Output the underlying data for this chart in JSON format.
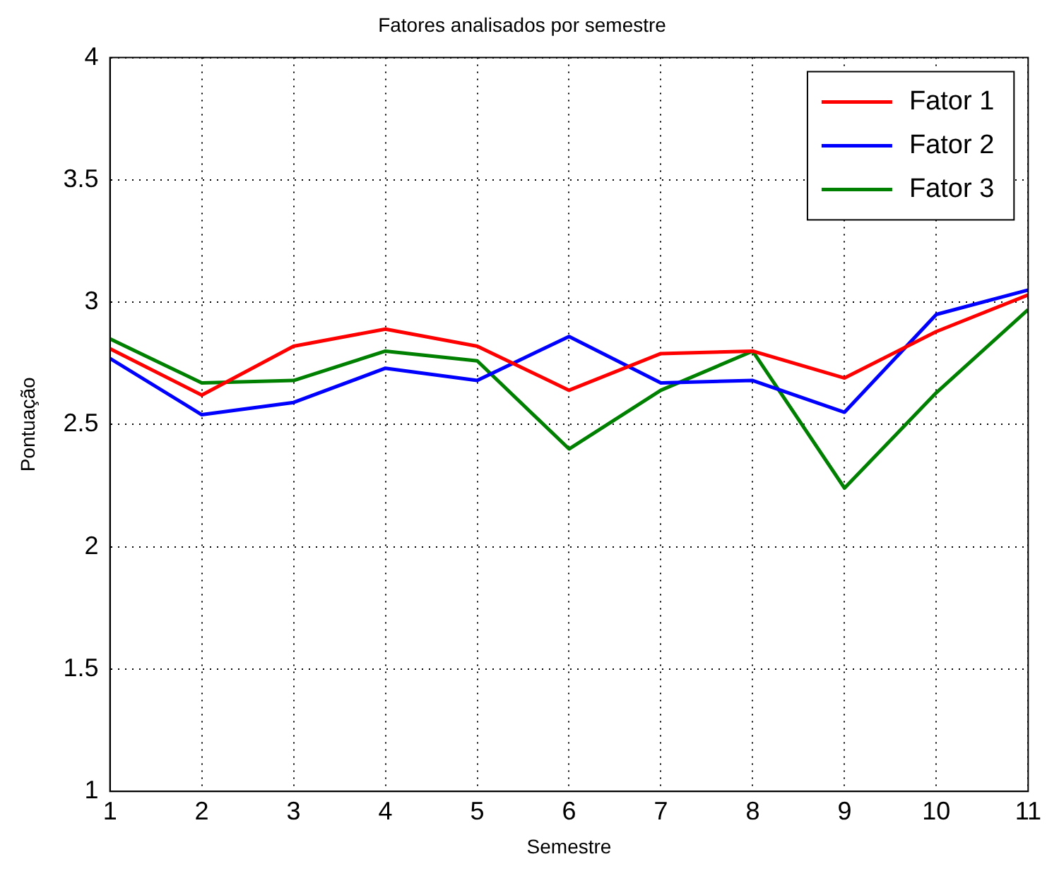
{
  "chart_data": {
    "type": "line",
    "title": "Fatores analisados por semestre",
    "xlabel": "Semestre",
    "ylabel": "Pontuação",
    "x": [
      1,
      2,
      3,
      4,
      5,
      6,
      7,
      8,
      9,
      10,
      11
    ],
    "series": [
      {
        "name": "Fator 1",
        "color": "#ff0000",
        "values": [
          2.81,
          2.62,
          2.82,
          2.89,
          2.82,
          2.64,
          2.79,
          2.8,
          2.69,
          2.88,
          3.03
        ]
      },
      {
        "name": "Fator 2",
        "color": "#0000ff",
        "values": [
          2.77,
          2.54,
          2.59,
          2.73,
          2.68,
          2.86,
          2.67,
          2.68,
          2.55,
          2.95,
          3.05
        ]
      },
      {
        "name": "Fator 3",
        "color": "#008000",
        "values": [
          2.85,
          2.67,
          2.68,
          2.8,
          2.76,
          2.4,
          2.64,
          2.8,
          2.24,
          2.63,
          2.97
        ]
      }
    ],
    "xlim": [
      1,
      11
    ],
    "xticks": [
      1,
      2,
      3,
      4,
      5,
      6,
      7,
      8,
      9,
      10,
      11
    ],
    "ylim": [
      1,
      4
    ],
    "yticks": [
      1,
      1.5,
      2,
      2.5,
      3,
      3.5,
      4
    ],
    "grid": true,
    "legend": "top right",
    "marker": "none",
    "line_style": "solid"
  }
}
